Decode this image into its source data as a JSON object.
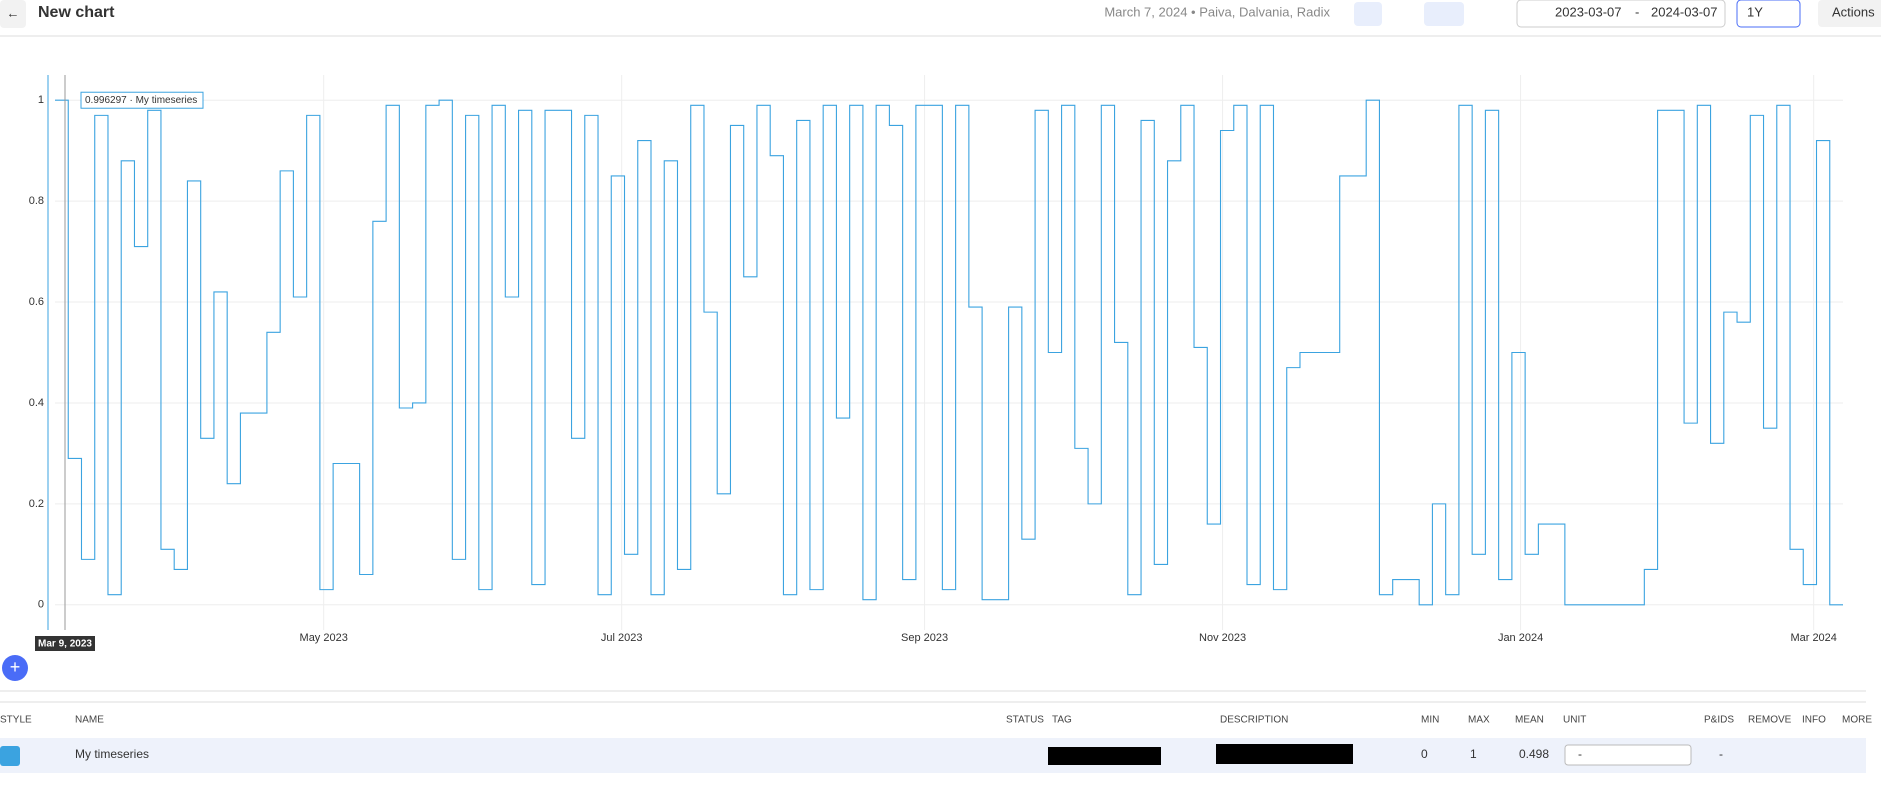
{
  "header": {
    "back": "←",
    "title": "New chart",
    "meta": "March 7, 2024 • Paiva, Dalvania, Radix",
    "date_from": "2023-03-07",
    "date_sep": "-",
    "date_to": "2024-03-07",
    "range": "1Y",
    "actions": "Actions"
  },
  "chart_data": {
    "type": "line",
    "step": true,
    "xlim": [
      "2023-03-07",
      "2024-03-07"
    ],
    "xticks": [
      {
        "value": "2023-05",
        "label": "May 2023"
      },
      {
        "value": "2023-07",
        "label": "Jul 2023"
      },
      {
        "value": "2023-09",
        "label": "Sep 2023"
      },
      {
        "value": "2023-11",
        "label": "Nov 2023"
      },
      {
        "value": "2024-01",
        "label": "Jan 2024"
      },
      {
        "value": "2024-03",
        "label": "Mar 2024"
      }
    ],
    "ylim": [
      -0.05,
      1.05
    ],
    "yticks": [
      0,
      0.2,
      0.4,
      0.6,
      0.8,
      1
    ],
    "grid": true,
    "annotations": [
      "0.996297 · My timeseries",
      "Mar 9, 2023"
    ],
    "series": [
      {
        "name": "My timeseries",
        "color": "#3ba3e0",
        "values": [
          1,
          0.29,
          0.09,
          0.97,
          0.02,
          0.88,
          0.71,
          0.98,
          0.11,
          0.07,
          0.84,
          0.33,
          0.62,
          0.24,
          0.38,
          0.38,
          0.54,
          0.86,
          0.61,
          0.97,
          0.03,
          0.28,
          0.28,
          0.06,
          0.76,
          0.99,
          0.39,
          0.4,
          0.99,
          1,
          0.09,
          0.97,
          0.03,
          0.99,
          0.61,
          0.98,
          0.04,
          0.98,
          0.98,
          0.33,
          0.97,
          0.02,
          0.85,
          0.1,
          0.92,
          0.02,
          0.88,
          0.07,
          0.99,
          0.58,
          0.22,
          0.95,
          0.65,
          0.99,
          0.89,
          0.02,
          0.96,
          0.03,
          0.99,
          0.37,
          0.99,
          0.01,
          0.99,
          0.95,
          0.05,
          0.99,
          0.99,
          0.03,
          0.99,
          0.59,
          0.01,
          0.01,
          0.59,
          0.13,
          0.98,
          0.5,
          0.99,
          0.31,
          0.2,
          0.99,
          0.52,
          0.02,
          0.96,
          0.08,
          0.88,
          0.99,
          0.51,
          0.16,
          0.94,
          0.99,
          0.04,
          0.99,
          0.03,
          0.47,
          0.5,
          0.5,
          0.5,
          0.85,
          0.85,
          1,
          0.02,
          0.05,
          0.05,
          0,
          0.2,
          0.02,
          0.99,
          0.1,
          0.98,
          0.05,
          0.5,
          0.1,
          0.16,
          0.16,
          0,
          0,
          0,
          0,
          0,
          0,
          0.07,
          0.98,
          0.98,
          0.36,
          0.99,
          0.32,
          0.58,
          0.56,
          0.97,
          0.35,
          0.99,
          0.11,
          0.04,
          0.92,
          0
        ]
      }
    ]
  },
  "table": {
    "columns": [
      "STYLE",
      "NAME",
      "STATUS",
      "TAG",
      "DESCRIPTION",
      "MIN",
      "MAX",
      "MEAN",
      "UNIT",
      "P&IDS",
      "REMOVE",
      "INFO",
      "MORE"
    ],
    "row": {
      "name": "My timeseries",
      "min": "0",
      "max": "1",
      "mean": "0.498",
      "unit": "-",
      "pids": "-"
    }
  }
}
